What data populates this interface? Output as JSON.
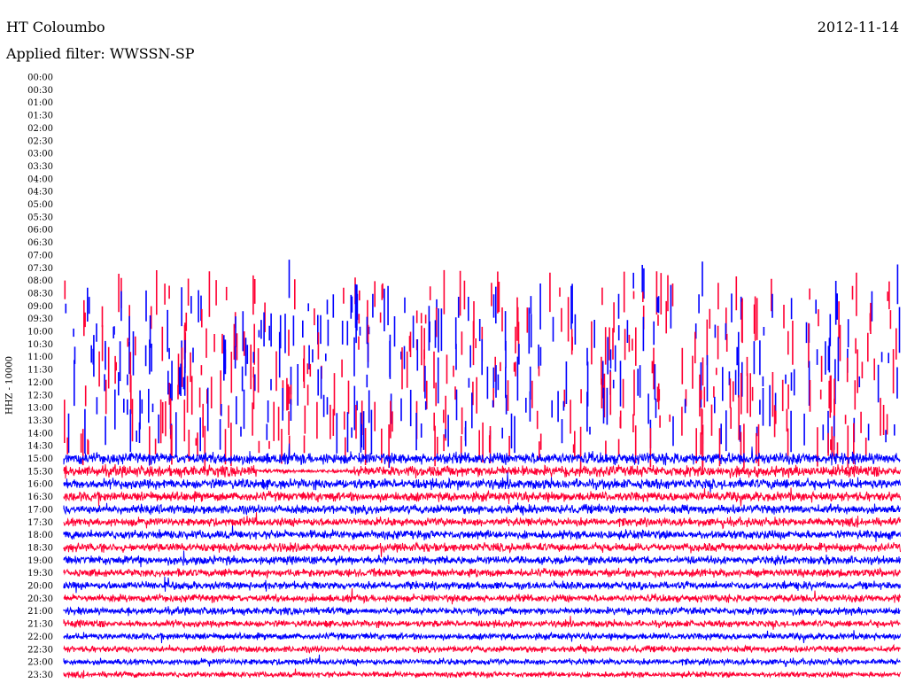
{
  "header": {
    "station": "HT Coloumbo",
    "date": "2012-11-14",
    "filter": "Applied filter: WWSSN-SP"
  },
  "chart_data": {
    "type": "line",
    "title": "HT Coloumbo",
    "ylabel": "HHZ - 10000",
    "row_labels": [
      "00:00",
      "00:30",
      "01:00",
      "01:30",
      "02:00",
      "02:30",
      "03:00",
      "03:30",
      "04:00",
      "04:30",
      "05:00",
      "05:30",
      "06:00",
      "06:30",
      "07:00",
      "07:30",
      "08:00",
      "08:30",
      "09:00",
      "09:30",
      "10:00",
      "10:30",
      "11:00",
      "11:30",
      "12:00",
      "12:30",
      "13:00",
      "13:30",
      "14:00",
      "14:30",
      "15:00",
      "15:30",
      "16:00",
      "16:30",
      "17:00",
      "17:30",
      "18:00",
      "18:30",
      "19:00",
      "19:30",
      "20:00",
      "20:30",
      "21:00",
      "21:30",
      "22:00",
      "22:30",
      "23:00",
      "23:30"
    ],
    "series_colors": [
      "#0000ff",
      "#ff0033"
    ],
    "data_start_row": 16,
    "sparse_until_row": 29,
    "noise_start_row": 30
  }
}
